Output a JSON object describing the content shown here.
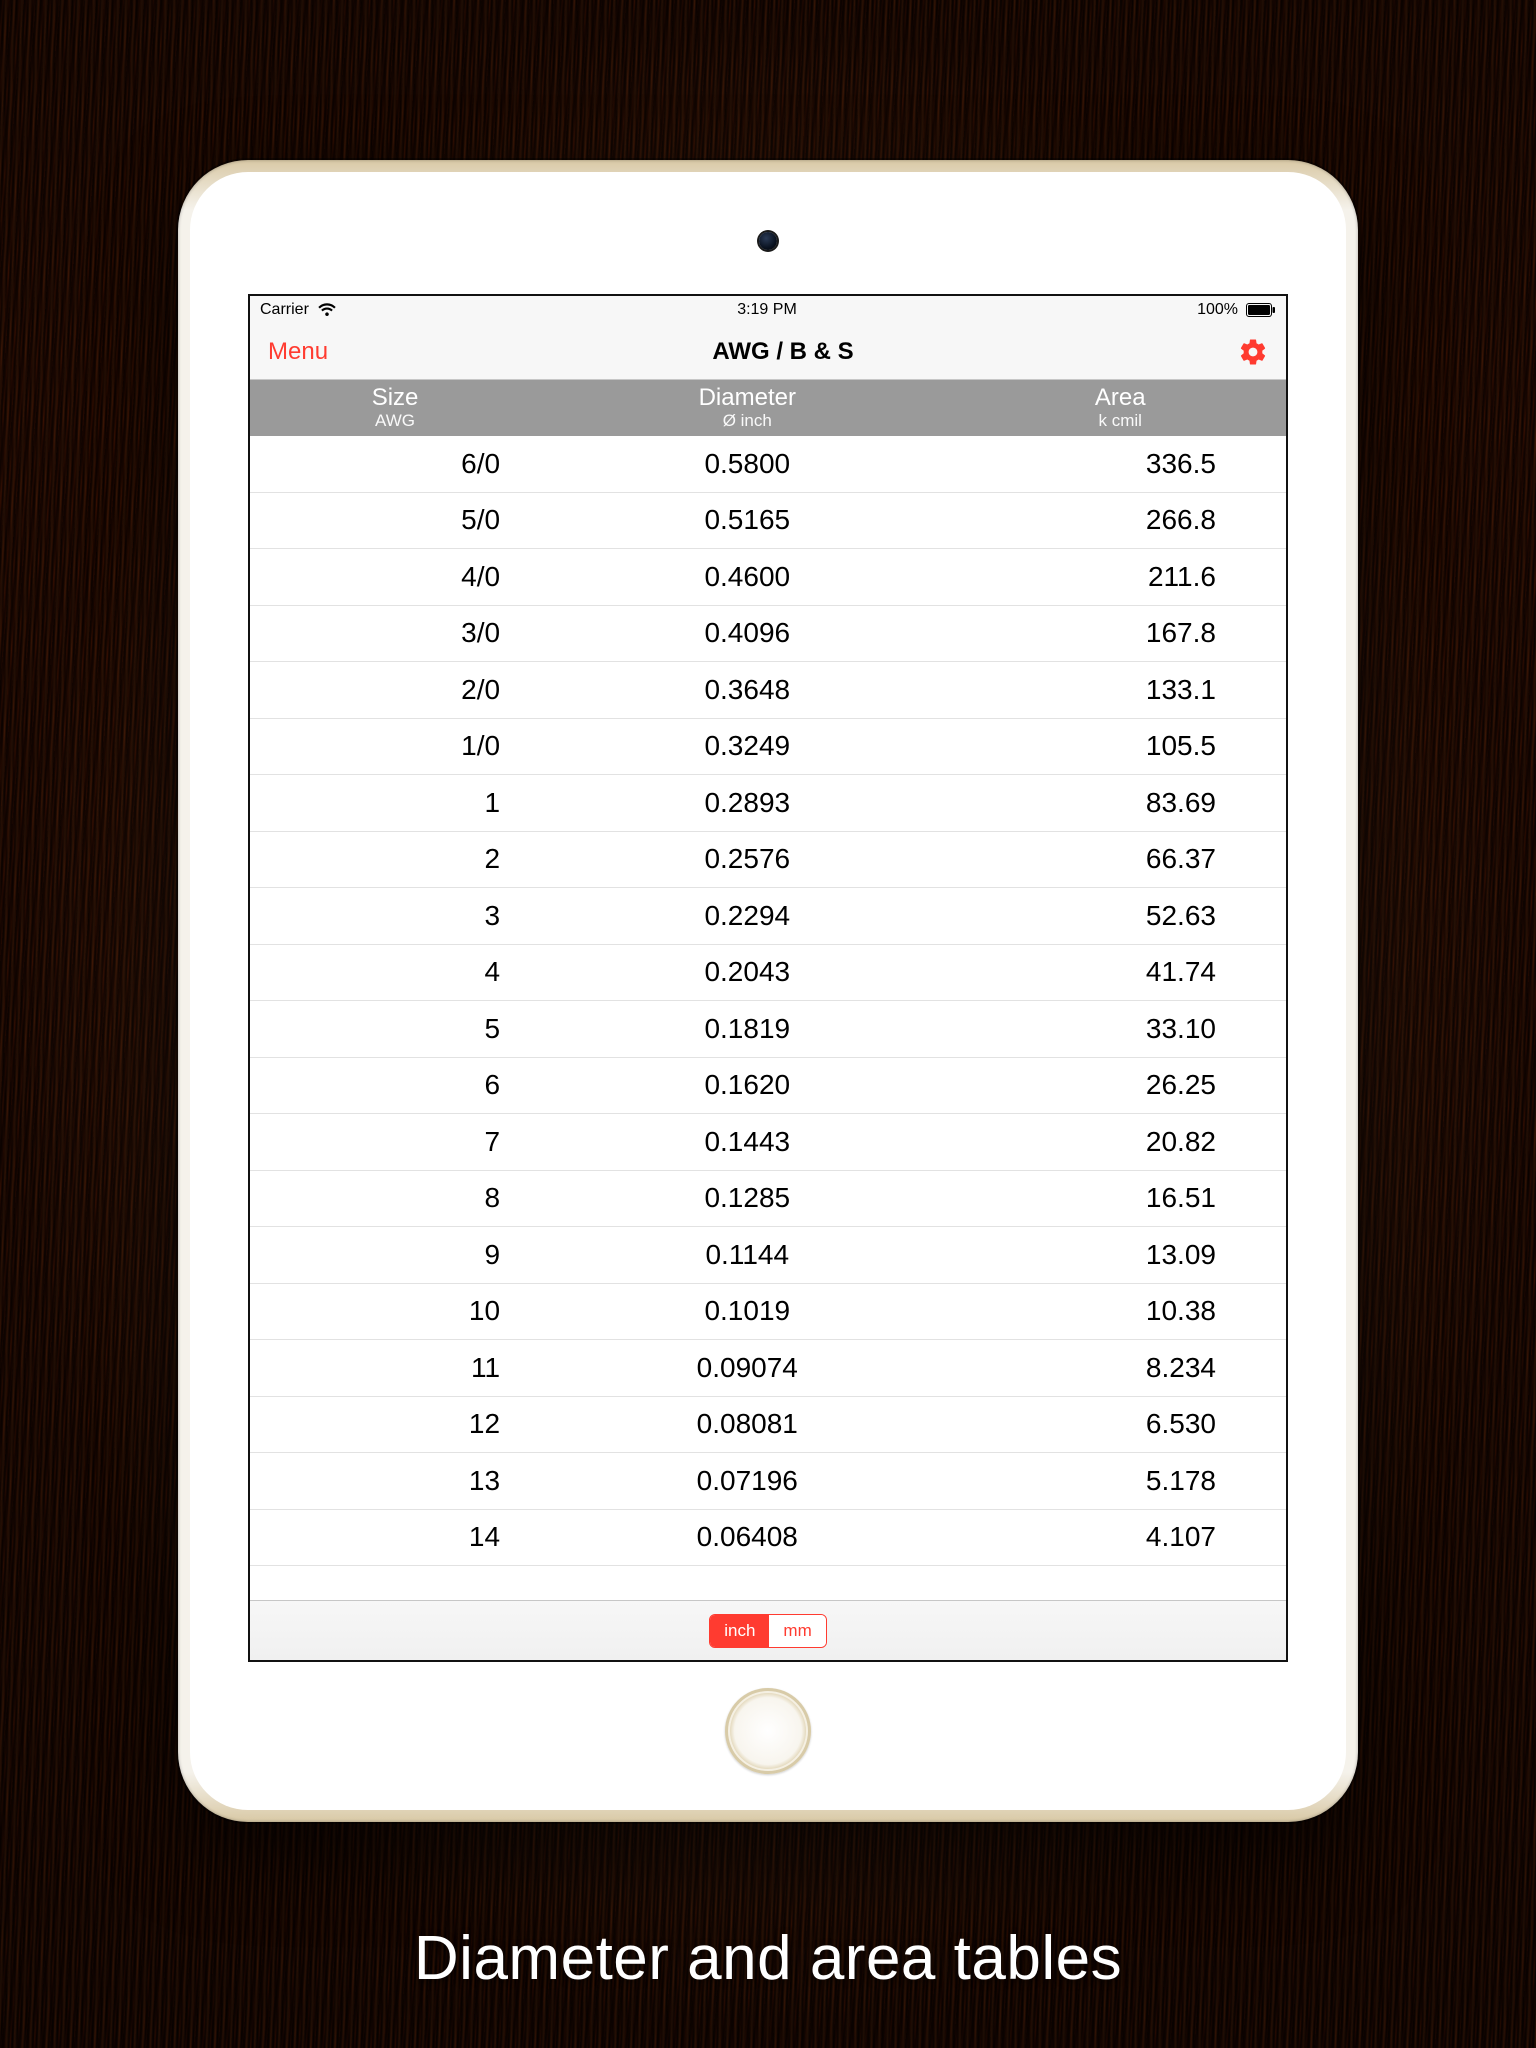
{
  "caption": "Diameter and area tables",
  "status_bar": {
    "carrier": "Carrier",
    "time": "3:19 PM",
    "battery_pct": "100%"
  },
  "nav": {
    "back_label": "Menu",
    "title": "AWG / B & S"
  },
  "accent_color": "#ff3b30",
  "table": {
    "columns": [
      {
        "title": "Size",
        "sub": "AWG"
      },
      {
        "title": "Diameter",
        "sub": "Ø inch"
      },
      {
        "title": "Area",
        "sub": "k cmil"
      }
    ],
    "rows": [
      {
        "size": "6/0",
        "diameter": "0.5800",
        "area": "336.5"
      },
      {
        "size": "5/0",
        "diameter": "0.5165",
        "area": "266.8"
      },
      {
        "size": "4/0",
        "diameter": "0.4600",
        "area": "211.6"
      },
      {
        "size": "3/0",
        "diameter": "0.4096",
        "area": "167.8"
      },
      {
        "size": "2/0",
        "diameter": "0.3648",
        "area": "133.1"
      },
      {
        "size": "1/0",
        "diameter": "0.3249",
        "area": "105.5"
      },
      {
        "size": "1",
        "diameter": "0.2893",
        "area": "83.69"
      },
      {
        "size": "2",
        "diameter": "0.2576",
        "area": "66.37"
      },
      {
        "size": "3",
        "diameter": "0.2294",
        "area": "52.63"
      },
      {
        "size": "4",
        "diameter": "0.2043",
        "area": "41.74"
      },
      {
        "size": "5",
        "diameter": "0.1819",
        "area": "33.10"
      },
      {
        "size": "6",
        "diameter": "0.1620",
        "area": "26.25"
      },
      {
        "size": "7",
        "diameter": "0.1443",
        "area": "20.82"
      },
      {
        "size": "8",
        "diameter": "0.1285",
        "area": "16.51"
      },
      {
        "size": "9",
        "diameter": "0.1144",
        "area": "13.09"
      },
      {
        "size": "10",
        "diameter": "0.1019",
        "area": "10.38"
      },
      {
        "size": "11",
        "diameter": "0.09074",
        "area": "8.234"
      },
      {
        "size": "12",
        "diameter": "0.08081",
        "area": "6.530"
      },
      {
        "size": "13",
        "diameter": "0.07196",
        "area": "5.178"
      },
      {
        "size": "14",
        "diameter": "0.06408",
        "area": "4.107"
      }
    ]
  },
  "units": {
    "options": [
      "inch",
      "mm"
    ],
    "selected": "inch"
  }
}
